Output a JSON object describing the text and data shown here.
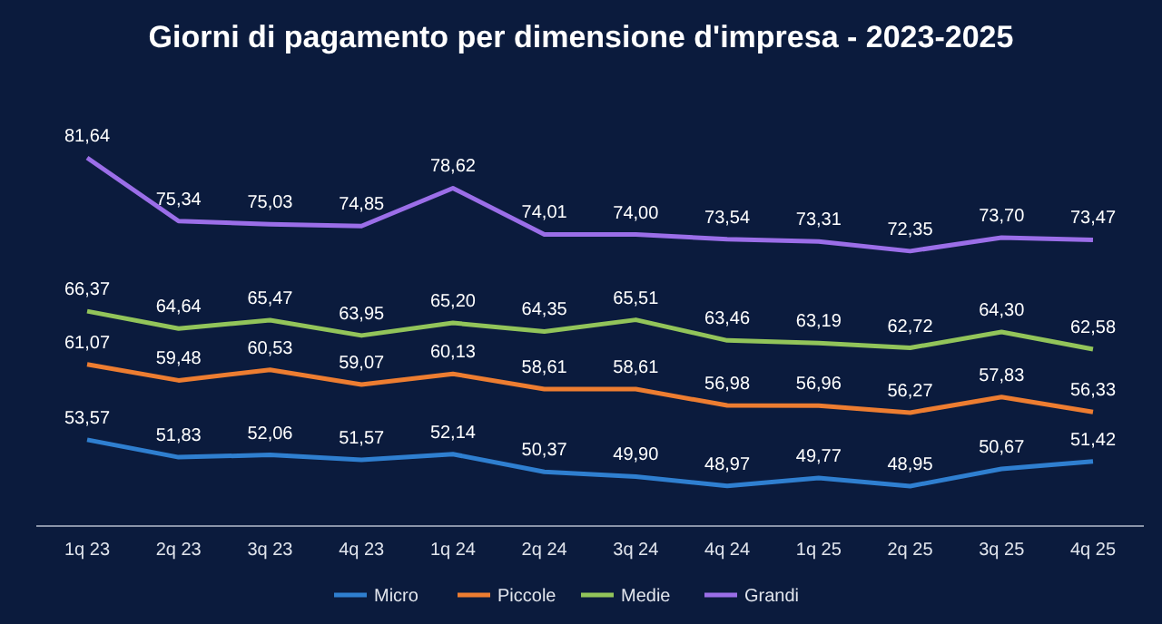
{
  "chart_data": {
    "type": "line",
    "title": "Giorni di pagamento per dimensione d'impresa - 2023-2025",
    "categories": [
      "1q 23",
      "2q 23",
      "3q 23",
      "4q 23",
      "1q 24",
      "2q 24",
      "3q 24",
      "4q 24",
      "1q 25",
      "2q 25",
      "3q 25",
      "4q 25"
    ],
    "series": [
      {
        "name": "Micro",
        "color": "#2f7fd0",
        "values": [
          53.57,
          51.83,
          52.06,
          51.57,
          52.14,
          50.37,
          49.9,
          48.97,
          49.77,
          48.95,
          50.67,
          51.42
        ],
        "value_labels": [
          "53,57",
          "51,83",
          "52,06",
          "51,57",
          "52,14",
          "50,37",
          "49,90",
          "48,97",
          "49,77",
          "48,95",
          "50,67",
          "51,42"
        ]
      },
      {
        "name": "Piccole",
        "color": "#ed7d31",
        "values": [
          61.07,
          59.48,
          60.53,
          59.07,
          60.13,
          58.61,
          58.61,
          56.98,
          56.96,
          56.27,
          57.83,
          56.33
        ],
        "value_labels": [
          "61,07",
          "59,48",
          "60,53",
          "59,07",
          "60,13",
          "58,61",
          "58,61",
          "56,98",
          "56,96",
          "56,27",
          "57,83",
          "56,33"
        ]
      },
      {
        "name": "Medie",
        "color": "#92c45a",
        "values": [
          66.37,
          64.64,
          65.47,
          63.95,
          65.2,
          64.35,
          65.51,
          63.46,
          63.19,
          62.72,
          64.3,
          62.58
        ],
        "value_labels": [
          "66,37",
          "64,64",
          "65,47",
          "63,95",
          "65,20",
          "64,35",
          "65,51",
          "63,46",
          "63,19",
          "62,72",
          "64,30",
          "62,58"
        ]
      },
      {
        "name": "Grandi",
        "color": "#9b6ee8",
        "values": [
          81.64,
          75.34,
          75.03,
          74.85,
          78.62,
          74.01,
          74.0,
          73.54,
          73.31,
          72.35,
          73.7,
          73.47
        ],
        "value_labels": [
          "81,64",
          "75,34",
          "75,03",
          "74,85",
          "78,62",
          "74,01",
          "74,00",
          "73,54",
          "73,31",
          "72,35",
          "73,70",
          "73,47"
        ]
      }
    ],
    "tick_labels": "x",
    "legend": "bottom",
    "marker": "none",
    "line_style": "solid"
  }
}
